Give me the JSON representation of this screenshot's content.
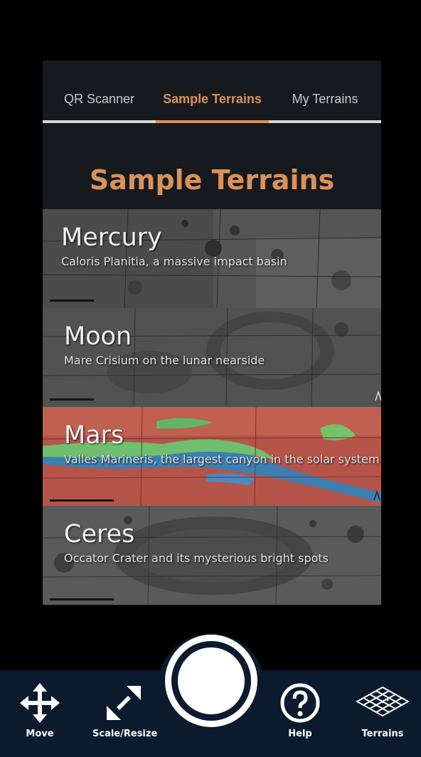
{
  "tabs": [
    {
      "label": "QR Scanner",
      "active": false
    },
    {
      "label": "Sample Terrains",
      "active": true
    },
    {
      "label": "My Terrains",
      "active": false
    }
  ],
  "panel": {
    "title": "Sample Terrains"
  },
  "terrains": [
    {
      "name": "Mercury",
      "description": "Caloris Planitia, a massive impact basin"
    },
    {
      "name": "Moon",
      "description": "Mare Crisium on the lunar nearside"
    },
    {
      "name": "Mars",
      "description": "Valles Marineris, the largest canyon in the solar system"
    },
    {
      "name": "Ceres",
      "description": "Occator Crater and its mysterious bright spots"
    }
  ],
  "toolbar": {
    "move_label": "Move",
    "scale_label": "Scale/Resize",
    "help_label": "Help",
    "terrains_label": "Terrains"
  },
  "colors": {
    "accent": "#d9925a",
    "panel_bg": "#16191e",
    "toolbar_bg": "#0b1a2d"
  },
  "icons": [
    "move-arrows-icon",
    "resize-diagonal-icon",
    "capture-shutter-icon",
    "help-question-icon",
    "terrain-mesh-icon"
  ]
}
